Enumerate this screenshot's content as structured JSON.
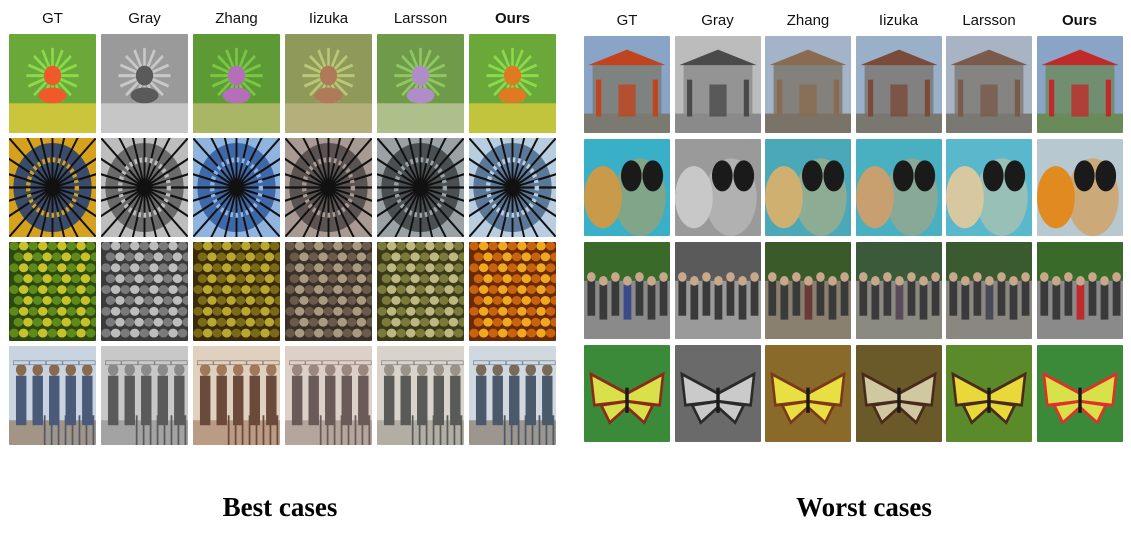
{
  "figure": {
    "columns": [
      "GT",
      "Gray",
      "Zhang",
      "Iizuka",
      "Larsson",
      "Ours"
    ],
    "best": {
      "caption": "Best cases",
      "rows": [
        "flower",
        "ceiling",
        "olives",
        "cowboys"
      ]
    },
    "worst": {
      "caption": "Worst cases",
      "rows": [
        "gate",
        "diver",
        "street",
        "butterfly"
      ]
    },
    "palettes": {
      "flower": {
        "GT": [
          "#6aa83a",
          "#f05a2a",
          "#f3d23c"
        ],
        "Gray": [
          "#9a9a9a",
          "#5a5a5a",
          "#d8d8d8"
        ],
        "Zhang": [
          "#5d9a35",
          "#b46fb8",
          "#c9c27a"
        ],
        "Iizuka": [
          "#8f9a5a",
          "#b07a5a",
          "#c4b88a"
        ],
        "Larsson": [
          "#6e9a4a",
          "#b08cc8",
          "#c8d0a8"
        ],
        "Ours": [
          "#6aa83a",
          "#e07a22",
          "#e8d040"
        ]
      },
      "ceiling": {
        "GT": [
          "#3a4c6a",
          "#d6a21e",
          "#111111"
        ],
        "Gray": [
          "#6a6a6a",
          "#bdbdbd",
          "#111111"
        ],
        "Zhang": [
          "#3f68a8",
          "#8fb4e0",
          "#111111"
        ],
        "Iizuka": [
          "#5a5352",
          "#a89a92",
          "#111111"
        ],
        "Larsson": [
          "#4a4f52",
          "#9aa2a6",
          "#111111"
        ],
        "Ours": [
          "#5c7898",
          "#b8cde0",
          "#111111"
        ]
      },
      "olives": {
        "GT": [
          "#5e8a1a",
          "#c8c22a",
          "#2c4a10"
        ],
        "Gray": [
          "#7a7a7a",
          "#bcbcbc",
          "#3a3a3a"
        ],
        "Zhang": [
          "#7a6a18",
          "#b8a830",
          "#3a2a0a"
        ],
        "Iizuka": [
          "#6a5a4a",
          "#a89a80",
          "#3a302a"
        ],
        "Larsson": [
          "#7a7a3a",
          "#bcb880",
          "#3a3a1a"
        ],
        "Ours": [
          "#c8620c",
          "#f0a81e",
          "#6a2a06"
        ]
      },
      "cowboys": {
        "GT": [
          "#c8d4e0",
          "#4a5a78",
          "#8a6a4a"
        ],
        "Gray": [
          "#c8c8c8",
          "#5a5a5a",
          "#8a8a8a"
        ],
        "Zhang": [
          "#e0d0c0",
          "#6a4a3a",
          "#a0785a"
        ],
        "Iizuka": [
          "#dcd0c8",
          "#6a5a58",
          "#9a8880"
        ],
        "Larsson": [
          "#d8d4cc",
          "#5a5a58",
          "#9a9488"
        ],
        "Ours": [
          "#d0d8e0",
          "#4a5a6a",
          "#7a6a58"
        ]
      },
      "gate": {
        "GT": [
          "#8aa4c8",
          "#c0441e",
          "#7a7a70"
        ],
        "Gray": [
          "#bcbcbc",
          "#4a4a4a",
          "#8a8a8a"
        ],
        "Zhang": [
          "#a4b4c8",
          "#8a6a50",
          "#7a7468"
        ],
        "Iizuka": [
          "#9ab0c8",
          "#7a4a3a",
          "#7a7670"
        ],
        "Larsson": [
          "#a8b4c4",
          "#7a5a4a",
          "#7a7872"
        ],
        "Ours": [
          "#8aa4c8",
          "#c02a2a",
          "#6a8a5a"
        ]
      },
      "diver": {
        "GT": [
          "#3ab0c8",
          "#c89a4a",
          "#1a1a1a"
        ],
        "Gray": [
          "#9a9a9a",
          "#c8c8c8",
          "#1a1a1a"
        ],
        "Zhang": [
          "#4aa8b8",
          "#d0b070",
          "#1a1a1a"
        ],
        "Iizuka": [
          "#48b0c0",
          "#c8a070",
          "#1a1a1a"
        ],
        "Larsson": [
          "#5ab8cc",
          "#d8c8a0",
          "#1a1a1a"
        ],
        "Ours": [
          "#b8c8d0",
          "#e08a20",
          "#1a1a1a"
        ]
      },
      "street": {
        "GT": [
          "#3a6a2a",
          "#3a4a8a",
          "#8a8a8a"
        ],
        "Gray": [
          "#5a5a5a",
          "#3a3a3a",
          "#9a9a9a"
        ],
        "Zhang": [
          "#3a5a2a",
          "#6a3a3a",
          "#8a8070"
        ],
        "Iizuka": [
          "#3a5a3a",
          "#5a4a5a",
          "#8a8a80"
        ],
        "Larsson": [
          "#3a5a30",
          "#4a4a5a",
          "#8a8880"
        ],
        "Ours": [
          "#3a6a2a",
          "#c02a2a",
          "#8a8a8a"
        ]
      },
      "butterfly": {
        "GT": [
          "#3a8a3a",
          "#d8e04a",
          "#8a2a1a"
        ],
        "Gray": [
          "#6a6a6a",
          "#cacaca",
          "#2a2a2a"
        ],
        "Zhang": [
          "#8a6a2a",
          "#e8e040",
          "#7a3a1a"
        ],
        "Iizuka": [
          "#6a5a2a",
          "#d0c8a0",
          "#4a2a1a"
        ],
        "Larsson": [
          "#5a8a2a",
          "#e8d83a",
          "#4a2a1a"
        ],
        "Ours": [
          "#3a8a3a",
          "#d8e04a",
          "#e0302a"
        ]
      }
    }
  }
}
